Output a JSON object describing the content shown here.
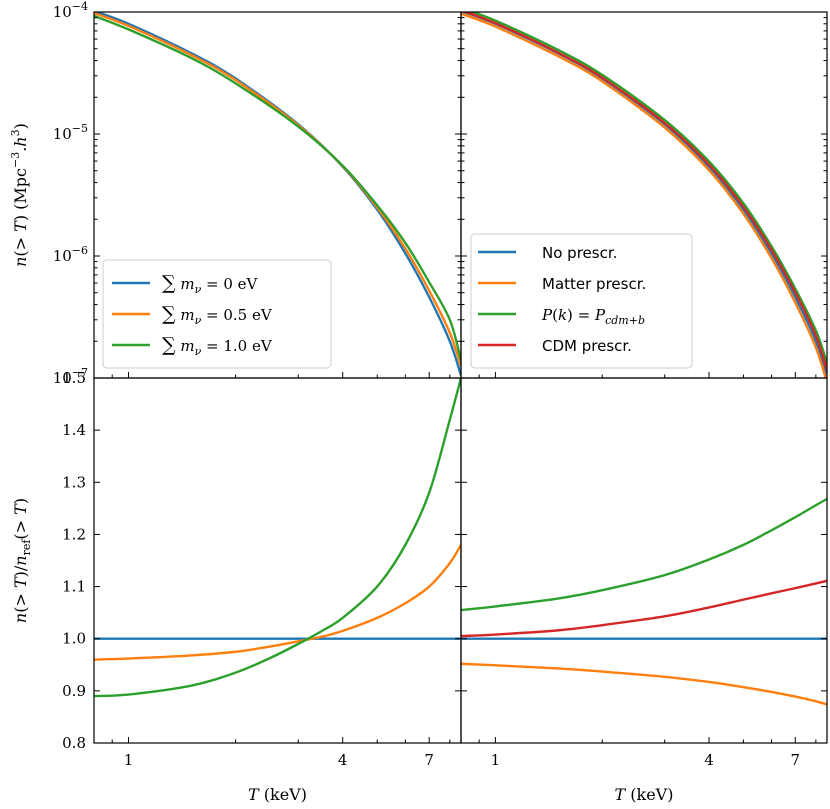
{
  "chart_data": [
    {
      "panel": "top-left",
      "type": "line",
      "ylabel": "n(> T) (Mpc⁻³.h³)",
      "yscale": "log",
      "ylim": [
        1e-07,
        0.0001
      ],
      "y_ticks": [
        {
          "value": 0.0001,
          "base": "10",
          "exp": "−4"
        },
        {
          "value": 1e-05,
          "base": "10",
          "exp": "−5"
        },
        {
          "value": 1e-06,
          "base": "10",
          "exp": "−6"
        },
        {
          "value": 1e-07,
          "base": "10",
          "exp": "−7"
        }
      ],
      "xlim": [
        0.8,
        8.6
      ],
      "x": [
        0.8,
        1,
        1.5,
        2,
        3,
        4,
        5,
        6,
        7,
        8,
        8.6
      ],
      "series": [
        {
          "name": "∑mν = 0 eV",
          "color": "#1f77b4",
          "values": [
            0.000102,
            8e-05,
            4.6e-05,
            2.85e-05,
            1.2e-05,
            5.4e-06,
            2.4e-06,
            1.05e-06,
            4.6e-07,
            2e-07,
            1.05e-07
          ]
        },
        {
          "name": "∑mν = 0.5 eV",
          "color": "#ff7f0e",
          "values": [
            9.8e-05,
            7.7e-05,
            4.45e-05,
            2.77e-05,
            1.18e-05,
            5.45e-06,
            2.5e-06,
            1.15e-06,
            5.2e-07,
            2.35e-07,
            1.25e-07
          ]
        },
        {
          "name": "∑mν = 1.0 eV",
          "color": "#2ca02c",
          "values": [
            9.3e-05,
            7.2e-05,
            4.2e-05,
            2.6e-05,
            1.15e-05,
            5.5e-06,
            2.6e-06,
            1.28e-06,
            6.1e-07,
            3e-07,
            1.4e-07
          ]
        }
      ],
      "legend": {
        "placement": "lower-left",
        "entries": [
          {
            "prefix": "∑",
            "var": "m",
            "sub": "ν",
            "rest": " = 0 eV",
            "color": "#1f77b4"
          },
          {
            "prefix": "∑",
            "var": "m",
            "sub": "ν",
            "rest": " = 0.5 eV",
            "color": "#ff7f0e"
          },
          {
            "prefix": "∑",
            "var": "m",
            "sub": "ν",
            "rest": " = 1.0 eV",
            "color": "#2ca02c"
          }
        ]
      }
    },
    {
      "panel": "top-right",
      "type": "line",
      "yscale": "log",
      "ylim": [
        1e-07,
        0.0001
      ],
      "xlim": [
        0.8,
        8.6
      ],
      "x": [
        0.8,
        1,
        1.5,
        2,
        3,
        4,
        5,
        6,
        7,
        8,
        8.6
      ],
      "series": [
        {
          "name": "No prescr.",
          "color": "#1f77b4",
          "values": [
            0.000102,
            8e-05,
            4.6e-05,
            2.85e-05,
            1.2e-05,
            5.4e-06,
            2.4e-06,
            1.05e-06,
            4.6e-07,
            2e-07,
            1.05e-07
          ]
        },
        {
          "name": "Matter prescr.",
          "color": "#ff7f0e",
          "values": [
            9.7e-05,
            7.6e-05,
            4.35e-05,
            2.7e-05,
            1.13e-05,
            5.05e-06,
            2.22e-06,
            9.6e-07,
            4.15e-07,
            1.78e-07,
            9.2e-08
          ]
        },
        {
          "name": "P(k) = P_cdm+b",
          "color": "#2ca02c",
          "values": [
            0.000108,
            8.5e-05,
            4.9e-05,
            3.05e-05,
            1.3e-05,
            5.95e-06,
            2.7e-06,
            1.2e-06,
            5.4e-07,
            2.45e-07,
            1.33e-07
          ]
        },
        {
          "name": "CDM prescr.",
          "color": "#d62728",
          "values": [
            0.000103,
            8.1e-05,
            4.65e-05,
            2.9e-05,
            1.23e-05,
            5.6e-06,
            2.52e-06,
            1.12e-06,
            5e-07,
            2.22e-07,
            1.16e-07
          ]
        }
      ],
      "legend": {
        "placement": "lower-left",
        "entries": [
          {
            "label": "No prescr.",
            "color": "#1f77b4"
          },
          {
            "label": "Matter prescr.",
            "color": "#ff7f0e"
          },
          {
            "label": "P(k) = P",
            "sub": "cdm+b",
            "color": "#2ca02c"
          },
          {
            "label": "CDM prescr.",
            "color": "#d62728"
          }
        ]
      }
    },
    {
      "panel": "bottom-left",
      "type": "line",
      "ylabel": "n(> T)/n_ref(> T)",
      "xlabel": "T (keV)",
      "ylim": [
        0.8,
        1.5
      ],
      "y_ticks": [
        "0.8",
        "0.9",
        "1.0",
        "1.1",
        "1.2",
        "1.3",
        "1.4",
        "1.5"
      ],
      "xscale": "log",
      "xlim": [
        0.8,
        8.6
      ],
      "x_ticks": [
        "1",
        "4",
        "7"
      ],
      "x": [
        0.8,
        1,
        1.5,
        2,
        2.5,
        3,
        3.5,
        4,
        5,
        6,
        7,
        8,
        8.6
      ],
      "series": [
        {
          "name": "∑mν = 0 eV",
          "color": "#1f77b4",
          "values": [
            1.0,
            1.0,
            1.0,
            1.0,
            1.0,
            1.0,
            1.0,
            1.0,
            1.0,
            1.0,
            1.0,
            1.0,
            1.0
          ]
        },
        {
          "name": "∑mν = 0.5 eV",
          "color": "#ff7f0e",
          "values": [
            0.96,
            0.962,
            0.968,
            0.975,
            0.985,
            0.995,
            1.004,
            1.015,
            1.04,
            1.068,
            1.1,
            1.145,
            1.18
          ]
        },
        {
          "name": "∑mν = 1.0 eV",
          "color": "#2ca02c",
          "values": [
            0.89,
            0.893,
            0.91,
            0.935,
            0.963,
            0.99,
            1.015,
            1.04,
            1.1,
            1.18,
            1.28,
            1.42,
            1.5
          ]
        }
      ]
    },
    {
      "panel": "bottom-right",
      "type": "line",
      "xlabel": "T (keV)",
      "ylim": [
        0.8,
        1.5
      ],
      "xscale": "log",
      "xlim": [
        0.8,
        8.6
      ],
      "x_ticks": [
        "1",
        "4",
        "7"
      ],
      "x": [
        0.8,
        1,
        1.5,
        2,
        3,
        4,
        5,
        6,
        7,
        8,
        8.6
      ],
      "series": [
        {
          "name": "No prescr.",
          "color": "#1f77b4",
          "values": [
            1.0,
            1.0,
            1.0,
            1.0,
            1.0,
            1.0,
            1.0,
            1.0,
            1.0,
            1.0,
            1.0
          ]
        },
        {
          "name": "Matter prescr.",
          "color": "#ff7f0e",
          "values": [
            0.952,
            0.949,
            0.943,
            0.937,
            0.927,
            0.917,
            0.907,
            0.898,
            0.889,
            0.88,
            0.874
          ]
        },
        {
          "name": "P(k) = P_cdm+b",
          "color": "#2ca02c",
          "values": [
            1.055,
            1.062,
            1.077,
            1.093,
            1.122,
            1.152,
            1.18,
            1.208,
            1.233,
            1.256,
            1.268
          ]
        },
        {
          "name": "CDM prescr.",
          "color": "#d62728",
          "values": [
            1.005,
            1.008,
            1.016,
            1.026,
            1.043,
            1.06,
            1.075,
            1.087,
            1.097,
            1.106,
            1.111
          ]
        }
      ]
    }
  ]
}
